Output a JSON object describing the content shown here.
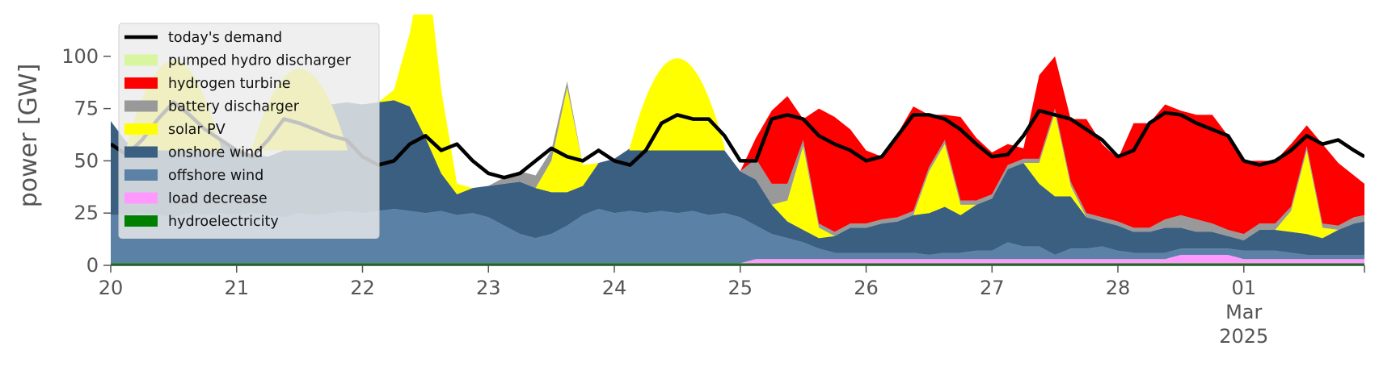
{
  "chart_data": {
    "type": "area",
    "ylabel": "power [GW]",
    "ylim": [
      0,
      120
    ],
    "yticks": [
      0,
      25,
      50,
      75,
      100
    ],
    "xlim": [
      "2025-02-20T00:00",
      "2025-03-01T23:00"
    ],
    "xticks": [
      {
        "x": "2025-02-20T00:00",
        "label": "20"
      },
      {
        "x": "2025-02-21T00:00",
        "label": "21"
      },
      {
        "x": "2025-02-22T00:00",
        "label": "22"
      },
      {
        "x": "2025-02-23T00:00",
        "label": "23"
      },
      {
        "x": "2025-02-24T00:00",
        "label": "24"
      },
      {
        "x": "2025-02-25T00:00",
        "label": "25"
      },
      {
        "x": "2025-02-26T00:00",
        "label": "26"
      },
      {
        "x": "2025-02-27T00:00",
        "label": "27"
      },
      {
        "x": "2025-02-28T00:00",
        "label": "28"
      },
      {
        "x": "2025-03-01T00:00",
        "label": "01",
        "sublabel": "Mar",
        "year": "2025"
      }
    ],
    "grid": false,
    "legend_position": "upper-left",
    "x": [
      "2025-02-20T00:00",
      "2025-02-20T03:00",
      "2025-02-20T06:00",
      "2025-02-20T09:00",
      "2025-02-20T12:00",
      "2025-02-20T15:00",
      "2025-02-20T18:00",
      "2025-02-20T21:00",
      "2025-02-21T00:00",
      "2025-02-21T03:00",
      "2025-02-21T06:00",
      "2025-02-21T09:00",
      "2025-02-21T12:00",
      "2025-02-21T15:00",
      "2025-02-21T18:00",
      "2025-02-21T21:00",
      "2025-02-22T00:00",
      "2025-02-22T03:00",
      "2025-02-22T06:00",
      "2025-02-22T09:00",
      "2025-02-22T12:00",
      "2025-02-22T15:00",
      "2025-02-22T18:00",
      "2025-02-22T21:00",
      "2025-02-23T00:00",
      "2025-02-23T03:00",
      "2025-02-23T06:00",
      "2025-02-23T09:00",
      "2025-02-23T12:00",
      "2025-02-23T15:00",
      "2025-02-23T18:00",
      "2025-02-23T21:00",
      "2025-02-24T00:00",
      "2025-02-24T03:00",
      "2025-02-24T06:00",
      "2025-02-24T09:00",
      "2025-02-24T12:00",
      "2025-02-24T15:00",
      "2025-02-24T18:00",
      "2025-02-24T21:00",
      "2025-02-25T00:00",
      "2025-02-25T03:00",
      "2025-02-25T06:00",
      "2025-02-25T09:00",
      "2025-02-25T12:00",
      "2025-02-25T15:00",
      "2025-02-25T18:00",
      "2025-02-25T21:00",
      "2025-02-26T00:00",
      "2025-02-26T03:00",
      "2025-02-26T06:00",
      "2025-02-26T09:00",
      "2025-02-26T12:00",
      "2025-02-26T15:00",
      "2025-02-26T18:00",
      "2025-02-26T21:00",
      "2025-02-27T00:00",
      "2025-02-27T03:00",
      "2025-02-27T06:00",
      "2025-02-27T09:00",
      "2025-02-27T12:00",
      "2025-02-27T15:00",
      "2025-02-27T18:00",
      "2025-02-27T21:00",
      "2025-02-28T00:00",
      "2025-02-28T03:00",
      "2025-02-28T06:00",
      "2025-02-28T09:00",
      "2025-02-28T12:00",
      "2025-02-28T15:00",
      "2025-02-28T18:00",
      "2025-02-28T21:00",
      "2025-03-01T00:00",
      "2025-03-01T03:00",
      "2025-03-01T06:00",
      "2025-03-01T09:00",
      "2025-03-01T12:00",
      "2025-03-01T15:00",
      "2025-03-01T18:00",
      "2025-03-01T21:00",
      "2025-03-01T23:00"
    ],
    "series": [
      {
        "name": "hydroelectricity",
        "color": "#008000",
        "values": [
          1,
          1,
          1,
          1,
          1,
          1,
          1,
          1,
          1,
          1,
          1,
          1,
          1,
          1,
          1,
          1,
          1,
          1,
          1,
          1,
          1,
          1,
          1,
          1,
          1,
          1,
          1,
          1,
          1,
          1,
          1,
          1,
          1,
          1,
          1,
          1,
          1,
          1,
          1,
          1,
          1,
          1,
          1,
          1,
          1,
          1,
          1,
          1,
          1,
          1,
          1,
          1,
          1,
          1,
          1,
          1,
          1,
          1,
          1,
          1,
          1,
          1,
          1,
          1,
          1,
          1,
          1,
          1,
          1,
          1,
          1,
          1,
          1,
          1,
          1,
          1,
          1,
          1,
          1,
          1,
          1
        ]
      },
      {
        "name": "load decrease",
        "color": "#ff99ff",
        "values": [
          0,
          0,
          0,
          0,
          0,
          0,
          0,
          0,
          0,
          0,
          0,
          0,
          0,
          0,
          0,
          0,
          0,
          0,
          0,
          0,
          0,
          0,
          0,
          0,
          0,
          0,
          0,
          0,
          0,
          0,
          0,
          0,
          0,
          0,
          0,
          0,
          0,
          0,
          0,
          0,
          0,
          2,
          2,
          2,
          2,
          2,
          2,
          2,
          2,
          2,
          2,
          2,
          2,
          2,
          2,
          2,
          2,
          2,
          2,
          2,
          2,
          2,
          2,
          2,
          2,
          2,
          2,
          2,
          4,
          4,
          4,
          4,
          2,
          2,
          2,
          2,
          2,
          2,
          2,
          2,
          2
        ]
      },
      {
        "name": "offshore wind",
        "color": "#5b82a6",
        "values": [
          23,
          23,
          24,
          23,
          22,
          24,
          23,
          24,
          23,
          24,
          23,
          22,
          24,
          23,
          24,
          25,
          24,
          25,
          26,
          25,
          24,
          25,
          23,
          24,
          22,
          18,
          14,
          12,
          14,
          18,
          23,
          26,
          24,
          25,
          24,
          25,
          24,
          25,
          23,
          24,
          22,
          16,
          12,
          10,
          8,
          5,
          3,
          3,
          3,
          3,
          3,
          3,
          2,
          3,
          3,
          4,
          4,
          8,
          6,
          6,
          2,
          5,
          5,
          6,
          4,
          3,
          3,
          3,
          3,
          3,
          3,
          3,
          4,
          4,
          4,
          3,
          2,
          2,
          2,
          2,
          2
        ]
      },
      {
        "name": "onshore wind",
        "color": "#3b5f81",
        "values": [
          45,
          35,
          33,
          50,
          58,
          50,
          40,
          34,
          30,
          28,
          28,
          32,
          45,
          50,
          52,
          52,
          52,
          52,
          52,
          50,
          36,
          18,
          10,
          12,
          15,
          20,
          25,
          24,
          20,
          16,
          14,
          22,
          26,
          30,
          38,
          45,
          50,
          48,
          40,
          30,
          22,
          22,
          14,
          8,
          6,
          5,
          8,
          12,
          12,
          14,
          15,
          18,
          20,
          22,
          18,
          22,
          25,
          35,
          40,
          30,
          28,
          25,
          15,
          12,
          12,
          10,
          10,
          12,
          10,
          8,
          8,
          6,
          5,
          10,
          10,
          10,
          10,
          8,
          12,
          15,
          16
        ]
      },
      {
        "name": "solar PV",
        "color": "#ffff00",
        "values": [
          0,
          0,
          0,
          0,
          0,
          0,
          0,
          0,
          0,
          0,
          0,
          0,
          0,
          0,
          0,
          0,
          0,
          0,
          5,
          35,
          90,
          40,
          5,
          0,
          0,
          0,
          0,
          0,
          15,
          50,
          10,
          0,
          0,
          0,
          0,
          0,
          0,
          0,
          0,
          0,
          0,
          0,
          0,
          10,
          40,
          5,
          0,
          0,
          0,
          0,
          0,
          0,
          20,
          30,
          5,
          0,
          0,
          0,
          0,
          10,
          40,
          5,
          0,
          0,
          0,
          0,
          0,
          0,
          0,
          0,
          0,
          0,
          0,
          0,
          0,
          10,
          40,
          5,
          0,
          0,
          0
        ]
      },
      {
        "name": "battery discharger",
        "color": "#999999",
        "values": [
          0,
          0,
          0,
          0,
          0,
          0,
          0,
          0,
          0,
          0,
          0,
          0,
          0,
          0,
          0,
          0,
          0,
          0,
          0,
          0,
          0,
          0,
          0,
          0,
          0,
          3,
          5,
          6,
          5,
          3,
          0,
          0,
          0,
          0,
          0,
          0,
          0,
          0,
          0,
          0,
          0,
          10,
          10,
          8,
          3,
          2,
          2,
          2,
          2,
          2,
          2,
          2,
          2,
          2,
          2,
          2,
          2,
          2,
          2,
          2,
          2,
          2,
          2,
          2,
          2,
          2,
          2,
          4,
          6,
          6,
          4,
          3,
          3,
          3,
          3,
          2,
          2,
          2,
          2,
          3,
          3
        ]
      },
      {
        "name": "hydrogen turbine",
        "color": "#ff0000",
        "values": [
          0,
          0,
          0,
          0,
          0,
          0,
          0,
          0,
          0,
          0,
          0,
          0,
          0,
          0,
          0,
          0,
          0,
          0,
          0,
          0,
          0,
          0,
          0,
          0,
          0,
          0,
          0,
          0,
          0,
          0,
          0,
          0,
          0,
          0,
          0,
          0,
          0,
          0,
          0,
          0,
          0,
          10,
          35,
          42,
          10,
          55,
          55,
          45,
          35,
          30,
          40,
          50,
          25,
          12,
          40,
          30,
          20,
          10,
          5,
          40,
          25,
          30,
          45,
          35,
          30,
          50,
          50,
          55,
          50,
          50,
          52,
          45,
          35,
          30,
          30,
          30,
          10,
          38,
          30,
          20,
          15
        ]
      },
      {
        "name": "pumped hydro discharger",
        "color": "#d8f5a0",
        "values": [
          0,
          0,
          0,
          0,
          0,
          0,
          0,
          0,
          0,
          0,
          0,
          0,
          0,
          0,
          0,
          0,
          0,
          0,
          0,
          0,
          0,
          0,
          0,
          0,
          0,
          0,
          0,
          0,
          0,
          0,
          0,
          0,
          0,
          0,
          0,
          0,
          0,
          0,
          0,
          0,
          0,
          0,
          0,
          0,
          0,
          0,
          0,
          0,
          0,
          0,
          0,
          0,
          0,
          0,
          0,
          0,
          0,
          0,
          0,
          0,
          0,
          0,
          0,
          0,
          0,
          0,
          0,
          0,
          0,
          0,
          0,
          0,
          0,
          0,
          0,
          0,
          0,
          0,
          0,
          0,
          0
        ]
      }
    ],
    "overlay_series": [
      {
        "name": "solar PV peaks",
        "color": "#ffff00",
        "points": [
          [
            "2025-02-20T09:00",
            95
          ],
          [
            "2025-02-20T12:00",
            118
          ],
          [
            "2025-02-20T15:00",
            90
          ],
          [
            "2025-02-21T09:00",
            90
          ],
          [
            "2025-02-21T12:00",
            110
          ],
          [
            "2025-02-21T15:00",
            85
          ],
          [
            "2025-02-24T09:00",
            100
          ],
          [
            "2025-02-24T12:00",
            120
          ],
          [
            "2025-02-24T15:00",
            90
          ]
        ]
      }
    ],
    "line_series": {
      "name": "today's demand",
      "color": "#000000",
      "values": [
        58,
        53,
        60,
        70,
        78,
        72,
        65,
        60,
        55,
        52,
        60,
        70,
        68,
        65,
        62,
        60,
        52,
        48,
        50,
        58,
        62,
        55,
        58,
        50,
        44,
        42,
        44,
        50,
        56,
        52,
        50,
        55,
        50,
        48,
        55,
        68,
        72,
        70,
        70,
        62,
        50,
        50,
        70,
        72,
        70,
        62,
        58,
        55,
        50,
        52,
        62,
        72,
        72,
        70,
        65,
        58,
        52,
        53,
        62,
        74,
        72,
        70,
        65,
        60,
        52,
        55,
        68,
        73,
        72,
        68,
        65,
        62,
        50,
        48,
        50,
        55,
        62,
        58,
        60,
        55,
        52
      ]
    },
    "legend": [
      "today's demand",
      "pumped hydro discharger",
      "hydrogen turbine",
      "battery discharger",
      "solar PV",
      "onshore wind",
      "offshore wind",
      "load decrease",
      "hydroelectricity"
    ]
  }
}
